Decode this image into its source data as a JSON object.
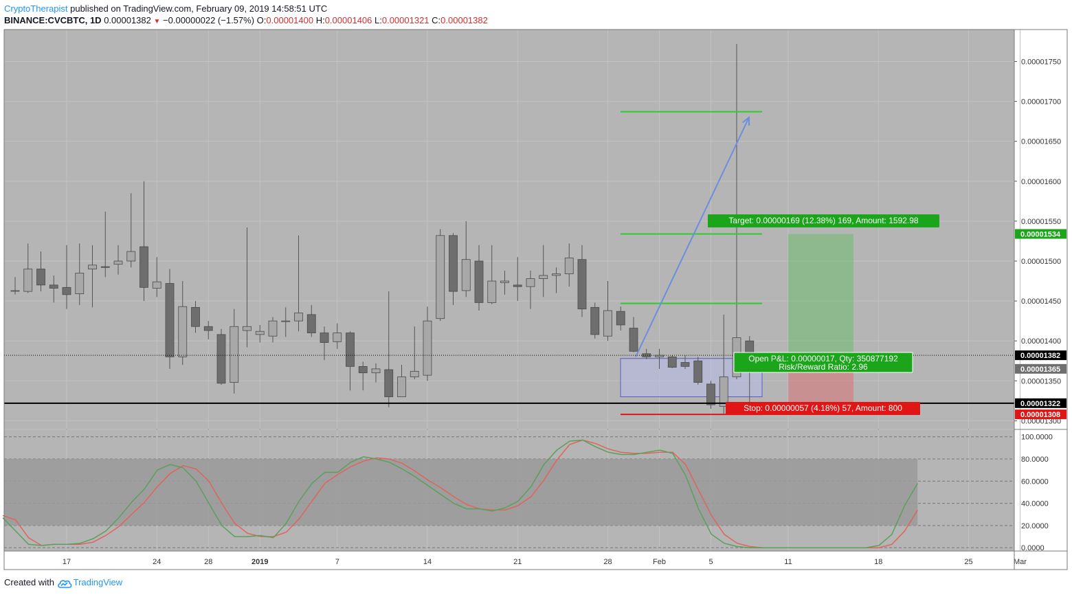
{
  "header": {
    "author": "CryptoTherapist",
    "published": "published on TradingView.com, February 09, 2019 14:58:51 UTC",
    "symbol": "BINANCE:CVCBTC, 1D",
    "last": "0.00001382",
    "change_arrow": "▼",
    "change": "−0.00000022 (−1.57%)",
    "o_label": "O:",
    "o": "0.00001400",
    "h_label": "H:",
    "h": "0.00001406",
    "l_label": "L:",
    "l": "0.00001321",
    "c_label": "C:",
    "c": "0.00001382"
  },
  "footer": {
    "created_with": "Created with",
    "brand": "TradingView",
    "logo_icon": "tradingview-cloud-icon"
  },
  "colors": {
    "background": "#b5b5b5",
    "candle": "#8a8a8a",
    "candle_up": "#a8a8a8",
    "candle_down": "#6e6e6e",
    "target_green": "#1aa51a",
    "stop_red": "#e01616",
    "level_line": "#2ecc2e",
    "entry_box": "#2020c8",
    "arrow": "#6a8ee0",
    "stoch_k": "#5aa05a",
    "stoch_d": "#e0645a",
    "stoch_band": "#9a9a9a"
  },
  "chart_data": {
    "type": "candlestick",
    "price_axis": {
      "ticks": [
        "0.00001750",
        "0.00001700",
        "0.00001650",
        "0.00001600",
        "0.00001550",
        "0.00001500",
        "0.00001450",
        "0.00001400",
        "0.00001350",
        "0.00001300"
      ],
      "ylim": [
        1.29e-05,
        1.79e-05
      ]
    },
    "date_axis": [
      "17",
      "24",
      "28",
      "2019",
      "7",
      "14",
      "21",
      "28",
      "Feb",
      "5",
      "11",
      "18",
      "25",
      "Mar"
    ],
    "candles": [
      {
        "date": "2018-12-13",
        "o": 1.463e-05,
        "h": 1.48e-05,
        "l": 1.458e-05,
        "c": 1.463e-05
      },
      {
        "date": "2018-12-14",
        "o": 1.462e-05,
        "h": 1.522e-05,
        "l": 1.46e-05,
        "c": 1.49e-05
      },
      {
        "date": "2018-12-15",
        "o": 1.49e-05,
        "h": 1.512e-05,
        "l": 1.462e-05,
        "c": 1.47e-05
      },
      {
        "date": "2018-12-16",
        "o": 1.47e-05,
        "h": 1.482e-05,
        "l": 1.448e-05,
        "c": 1.466e-05
      },
      {
        "date": "2018-12-17",
        "o": 1.467e-05,
        "h": 1.52e-05,
        "l": 1.44e-05,
        "c": 1.458e-05
      },
      {
        "date": "2018-12-18",
        "o": 1.459e-05,
        "h": 1.522e-05,
        "l": 1.445e-05,
        "c": 1.485e-05
      },
      {
        "date": "2018-12-19",
        "o": 1.49e-05,
        "h": 1.52e-05,
        "l": 1.442e-05,
        "c": 1.495e-05
      },
      {
        "date": "2018-12-20",
        "o": 1.493e-05,
        "h": 1.562e-05,
        "l": 1.48e-05,
        "c": 1.492e-05
      },
      {
        "date": "2018-12-21",
        "o": 1.496e-05,
        "h": 1.52e-05,
        "l": 1.483e-05,
        "c": 1.5e-05
      },
      {
        "date": "2018-12-22",
        "o": 1.5e-05,
        "h": 1.585e-05,
        "l": 1.492e-05,
        "c": 1.512e-05
      },
      {
        "date": "2018-12-23",
        "o": 1.518e-05,
        "h": 1.6e-05,
        "l": 1.45e-05,
        "c": 1.467e-05
      },
      {
        "date": "2018-12-24",
        "o": 1.466e-05,
        "h": 1.505e-05,
        "l": 1.455e-05,
        "c": 1.474e-05
      },
      {
        "date": "2018-12-25",
        "o": 1.472e-05,
        "h": 1.49e-05,
        "l": 1.365e-05,
        "c": 1.38e-05
      },
      {
        "date": "2018-12-26",
        "o": 1.38e-05,
        "h": 1.475e-05,
        "l": 1.37e-05,
        "c": 1.443e-05
      },
      {
        "date": "2018-12-27",
        "o": 1.442e-05,
        "h": 1.45e-05,
        "l": 1.41e-05,
        "c": 1.418e-05
      },
      {
        "date": "2018-12-28",
        "o": 1.418e-05,
        "h": 1.425e-05,
        "l": 1.402e-05,
        "c": 1.413e-05
      },
      {
        "date": "2018-12-29",
        "o": 1.408e-05,
        "h": 1.415e-05,
        "l": 1.345e-05,
        "c": 1.347e-05
      },
      {
        "date": "2018-12-30",
        "o": 1.348e-05,
        "h": 1.44e-05,
        "l": 1.334e-05,
        "c": 1.418e-05
      },
      {
        "date": "2018-12-31",
        "o": 1.413e-05,
        "h": 1.542e-05,
        "l": 1.392e-05,
        "c": 1.418e-05
      },
      {
        "date": "2019-01-01",
        "o": 1.408e-05,
        "h": 1.42e-05,
        "l": 1.398e-05,
        "c": 1.412e-05
      },
      {
        "date": "2019-01-02",
        "o": 1.406e-05,
        "h": 1.43e-05,
        "l": 1.398e-05,
        "c": 1.425e-05
      },
      {
        "date": "2019-01-03",
        "o": 1.425e-05,
        "h": 1.442e-05,
        "l": 1.405e-05,
        "c": 1.425e-05
      },
      {
        "date": "2019-01-04",
        "o": 1.425e-05,
        "h": 1.532e-05,
        "l": 1.412e-05,
        "c": 1.435e-05
      },
      {
        "date": "2019-01-05",
        "o": 1.433e-05,
        "h": 1.445e-05,
        "l": 1.405e-05,
        "c": 1.41e-05
      },
      {
        "date": "2019-01-06",
        "o": 1.41e-05,
        "h": 1.418e-05,
        "l": 1.376e-05,
        "c": 1.398e-05
      },
      {
        "date": "2019-01-07",
        "o": 1.399e-05,
        "h": 1.422e-05,
        "l": 1.39e-05,
        "c": 1.41e-05
      },
      {
        "date": "2019-01-08",
        "o": 1.41e-05,
        "h": 1.412e-05,
        "l": 1.338e-05,
        "c": 1.368e-05
      },
      {
        "date": "2019-01-09",
        "o": 1.368e-05,
        "h": 1.374e-05,
        "l": 1.338e-05,
        "c": 1.36e-05
      },
      {
        "date": "2019-01-10",
        "o": 1.36e-05,
        "h": 1.372e-05,
        "l": 1.348e-05,
        "c": 1.365e-05
      },
      {
        "date": "2019-01-11",
        "o": 1.364e-05,
        "h": 1.462e-05,
        "l": 1.317e-05,
        "c": 1.33e-05
      },
      {
        "date": "2019-01-12",
        "o": 1.33e-05,
        "h": 1.37e-05,
        "l": 1.33e-05,
        "c": 1.355e-05
      },
      {
        "date": "2019-01-13",
        "o": 1.355e-05,
        "h": 1.418e-05,
        "l": 1.352e-05,
        "c": 1.362e-05
      },
      {
        "date": "2019-01-14",
        "o": 1.357e-05,
        "h": 1.443e-05,
        "l": 1.35e-05,
        "c": 1.425e-05
      },
      {
        "date": "2019-01-15",
        "o": 1.428e-05,
        "h": 1.54e-05,
        "l": 1.425e-05,
        "c": 1.532e-05
      },
      {
        "date": "2019-01-16",
        "o": 1.532e-05,
        "h": 1.535e-05,
        "l": 1.445e-05,
        "c": 1.462e-05
      },
      {
        "date": "2019-01-17",
        "o": 1.463e-05,
        "h": 1.55e-05,
        "l": 1.455e-05,
        "c": 1.502e-05
      },
      {
        "date": "2019-01-18",
        "o": 1.5e-05,
        "h": 1.52e-05,
        "l": 1.438e-05,
        "c": 1.448e-05
      },
      {
        "date": "2019-01-19",
        "o": 1.448e-05,
        "h": 1.52e-05,
        "l": 1.446e-05,
        "c": 1.475e-05
      },
      {
        "date": "2019-01-20",
        "o": 1.473e-05,
        "h": 1.488e-05,
        "l": 1.458e-05,
        "c": 1.475e-05
      },
      {
        "date": "2019-01-21",
        "o": 1.47e-05,
        "h": 1.505e-05,
        "l": 1.45e-05,
        "c": 1.468e-05
      },
      {
        "date": "2019-01-22",
        "o": 1.468e-05,
        "h": 1.488e-05,
        "l": 1.44e-05,
        "c": 1.478e-05
      },
      {
        "date": "2019-01-23",
        "o": 1.478e-05,
        "h": 1.52e-05,
        "l": 1.455e-05,
        "c": 1.482e-05
      },
      {
        "date": "2019-01-24",
        "o": 1.482e-05,
        "h": 1.492e-05,
        "l": 1.46e-05,
        "c": 1.484e-05
      },
      {
        "date": "2019-01-25",
        "o": 1.484e-05,
        "h": 1.522e-05,
        "l": 1.468e-05,
        "c": 1.504e-05
      },
      {
        "date": "2019-01-26",
        "o": 1.502e-05,
        "h": 1.52e-05,
        "l": 1.43e-05,
        "c": 1.44e-05
      },
      {
        "date": "2019-01-27",
        "o": 1.442e-05,
        "h": 1.448e-05,
        "l": 1.403e-05,
        "c": 1.408e-05
      },
      {
        "date": "2019-01-28",
        "o": 1.406e-05,
        "h": 1.475e-05,
        "l": 1.4e-05,
        "c": 1.438e-05
      },
      {
        "date": "2019-01-29",
        "o": 1.437e-05,
        "h": 1.443e-05,
        "l": 1.413e-05,
        "c": 1.42e-05
      },
      {
        "date": "2019-01-30",
        "o": 1.416e-05,
        "h": 1.43e-05,
        "l": 1.386e-05,
        "c": 1.387e-05
      },
      {
        "date": "2019-01-31",
        "o": 1.384e-05,
        "h": 1.39e-05,
        "l": 1.377e-05,
        "c": 1.38e-05
      },
      {
        "date": "2019-02-01",
        "o": 1.38e-05,
        "h": 1.39e-05,
        "l": 1.365e-05,
        "c": 1.382e-05
      },
      {
        "date": "2019-02-02",
        "o": 1.38e-05,
        "h": 1.382e-05,
        "l": 1.366e-05,
        "c": 1.367e-05
      },
      {
        "date": "2019-02-03",
        "o": 1.373e-05,
        "h": 1.382e-05,
        "l": 1.365e-05,
        "c": 1.368e-05
      },
      {
        "date": "2019-02-04",
        "o": 1.375e-05,
        "h": 1.38e-05,
        "l": 1.345e-05,
        "c": 1.348e-05
      },
      {
        "date": "2019-02-05",
        "o": 1.346e-05,
        "h": 1.35e-05,
        "l": 1.315e-05,
        "c": 1.32e-05
      },
      {
        "date": "2019-02-06",
        "o": 1.318e-05,
        "h": 1.433e-05,
        "l": 1.308e-05,
        "c": 1.355e-05
      },
      {
        "date": "2019-02-07",
        "o": 1.355e-05,
        "h": 1.772e-05,
        "l": 1.352e-05,
        "c": 1.404e-05
      },
      {
        "date": "2019-02-08",
        "o": 1.4e-05,
        "h": 1.406e-05,
        "l": 1.321e-05,
        "c": 1.382e-05
      }
    ],
    "annotations": {
      "target_label": "Target: 0.00000169 (12.38%) 169, Amount: 1592.98",
      "stop_label": "Stop: 0.00000057 (4.18%) 57, Amount: 800",
      "pnl_label": "Open P&L: 0.00000017, Qty: 350877192",
      "rr_label": "Risk/Reward Ratio: 2.96",
      "levels": [
        1.687e-05,
        1.534e-05,
        1.447e-05
      ],
      "stop_level": 1.308e-05,
      "support_line": 1.322e-05,
      "entry_zone": [
        1.33e-05,
        1.378e-05
      ],
      "position_entry": 1.365e-05,
      "position_target": 1.534e-05,
      "position_stop": 1.308e-05
    },
    "price_tags": [
      {
        "label": "0.00001534",
        "color": "#1aa51a"
      },
      {
        "label": "0.00001382",
        "color": "#000000"
      },
      {
        "label": "0.00001365",
        "color": "#6e6e6e"
      },
      {
        "label": "0.00001322",
        "color": "#000000"
      },
      {
        "label": "0.00001308",
        "color": "#e01616"
      }
    ],
    "stochastic": {
      "ticks": [
        "100.0000",
        "80.0000",
        "60.0000",
        "40.0000",
        "20.0000",
        "0.0000"
      ],
      "ylim": [
        -3,
        106
      ],
      "upper_band": 80,
      "lower_band": 20,
      "k": [
        27,
        15,
        3,
        2,
        3,
        3,
        4,
        8,
        15,
        27,
        41,
        53,
        70,
        75,
        72,
        60,
        40,
        20,
        10,
        10,
        11,
        9,
        22,
        42,
        58,
        68,
        68,
        77,
        82,
        80,
        77,
        71,
        64,
        56,
        48,
        40,
        35,
        35,
        33,
        36,
        42,
        55,
        75,
        88,
        96,
        97,
        91,
        86,
        84,
        84,
        86,
        88,
        85,
        65,
        35,
        12,
        4,
        1,
        0,
        0,
        0,
        0,
        0,
        0,
        0,
        0,
        0,
        0,
        2,
        12,
        38,
        58
      ],
      "d": [
        29,
        25,
        9,
        2,
        3,
        3,
        3,
        5,
        11,
        19,
        30,
        41,
        55,
        67,
        74,
        71,
        60,
        40,
        22,
        13,
        10,
        10,
        14,
        26,
        42,
        58,
        66,
        73,
        78,
        81,
        80,
        76,
        69,
        61,
        54,
        46,
        39,
        35,
        34,
        34,
        38,
        46,
        61,
        79,
        93,
        97,
        94,
        89,
        86,
        85,
        85,
        86,
        86,
        75,
        52,
        29,
        12,
        4,
        1,
        0,
        0,
        0,
        0,
        0,
        0,
        0,
        0,
        0,
        0,
        3,
        15,
        34
      ]
    }
  }
}
